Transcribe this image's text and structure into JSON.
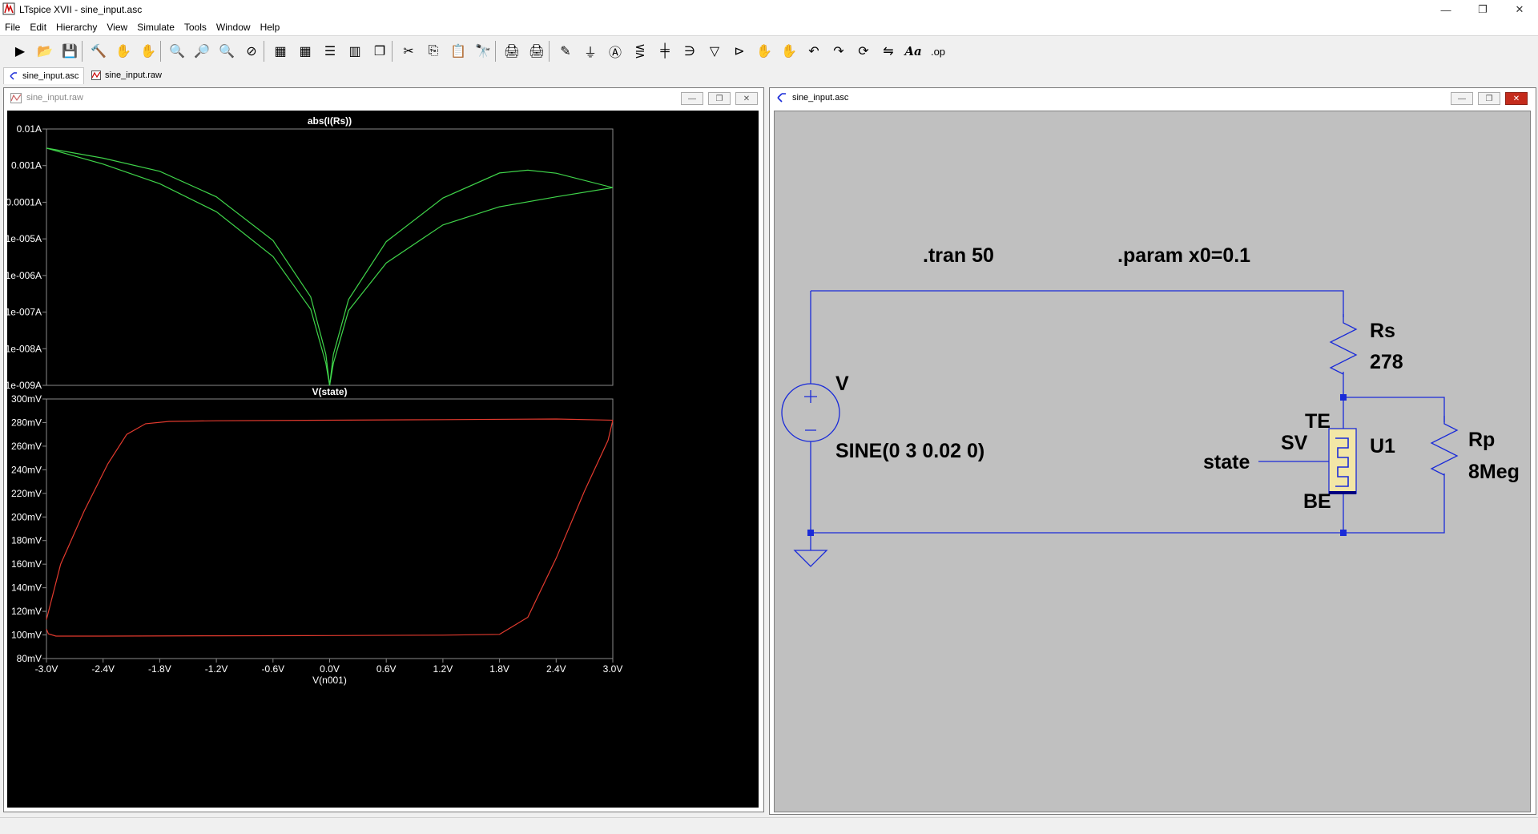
{
  "app": {
    "title": "LTspice XVII - sine_input.asc"
  },
  "window_controls": [
    "minimize-icon",
    "restore-icon",
    "close-icon"
  ],
  "menu": [
    "File",
    "Edit",
    "Hierarchy",
    "View",
    "Simulate",
    "Tools",
    "Window",
    "Help"
  ],
  "toolbar": {
    "icons": [
      "run-icon",
      "open-icon",
      "save-icon",
      "control-panel-icon",
      "halt-icon",
      "pan-icon",
      "zoom-in-icon",
      "zoom-area-icon",
      "zoom-out-icon",
      "zoom-fit-icon",
      "autorange-icon",
      "grid-icon",
      "tile-horizontal-icon",
      "tile-vertical-icon",
      "cascade-icon",
      "cut-icon",
      "copy-icon",
      "paste-icon",
      "find-icon",
      "print-icon",
      "print-setup-icon",
      "probe-icon",
      "ground-icon",
      "label-net-icon",
      "resistor-icon",
      "capacitor-icon",
      "inductor-icon",
      "diode-icon",
      "component-icon",
      "move-icon",
      "drag-icon",
      "undo-icon",
      "redo-icon",
      "rotate-icon",
      "mirror-icon",
      "text-icon",
      "spice-directive-icon"
    ],
    "op_label": ".op",
    "text_label": "Aa"
  },
  "tabs": [
    {
      "label": "sine_input.asc",
      "icon": "schematic-icon",
      "active": true
    },
    {
      "label": "sine_input.raw",
      "icon": "waveform-icon",
      "active": false
    }
  ],
  "waveform_window": {
    "title": "sine_input.raw"
  },
  "schematic_window": {
    "title": "sine_input.asc"
  },
  "colors": {
    "trace_green": "#3fd44a",
    "trace_red": "#e23a2e",
    "axis": "#8a8a8a",
    "wire": "#1a2bd8",
    "memristor": "#f2e6a6"
  },
  "chart_data": [
    {
      "type": "line",
      "title": "abs(I(Rs))",
      "xlabel": "",
      "yscale": "log",
      "xlim": [
        -3.0,
        3.0
      ],
      "ylim": [
        1e-09,
        0.01
      ],
      "y_ticks": [
        "0.01A",
        "0.001A",
        "0.0001A",
        "1e-005A",
        "1e-006A",
        "1e-007A",
        "1e-008A",
        "1e-009A"
      ],
      "series": [
        {
          "x": [
            -3.0,
            -2.4,
            -1.8,
            -1.2,
            -0.6,
            -0.2,
            -0.04,
            0.0,
            0.04,
            0.2,
            0.6,
            1.2,
            1.8,
            2.1,
            2.4,
            3.0
          ],
          "y": [
            0.003,
            0.0016,
            0.0007,
            0.00014,
            9e-06,
            2.6e-07,
            7e-09,
            1e-09,
            7e-09,
            2.2e-07,
            8.4e-06,
            0.00013,
            0.00063,
            0.00075,
            0.00062,
            0.00025
          ]
        },
        {
          "x": [
            -3.0,
            -2.4,
            -1.8,
            -1.2,
            -0.6,
            -0.2,
            -0.04,
            0.0,
            0.04,
            0.2,
            0.6,
            1.2,
            1.8,
            2.4,
            3.0
          ],
          "y": [
            0.003,
            0.0011,
            0.00032,
            5.5e-05,
            3.3e-06,
            1.2e-07,
            4e-09,
            1e-09,
            4e-09,
            1.1e-07,
            2.2e-06,
            2.4e-05,
            7.5e-05,
            0.00014,
            0.00025
          ]
        }
      ]
    },
    {
      "type": "line",
      "title": "V(state)",
      "xlabel": "V(n001)",
      "xlim": [
        -3.0,
        3.0
      ],
      "ylim": [
        80,
        300
      ],
      "x_ticks": [
        "-3.0V",
        "-2.4V",
        "-1.8V",
        "-1.2V",
        "-0.6V",
        "0.0V",
        "0.6V",
        "1.2V",
        "1.8V",
        "2.4V",
        "3.0V"
      ],
      "y_ticks": [
        "300mV",
        "280mV",
        "260mV",
        "240mV",
        "220mV",
        "200mV",
        "180mV",
        "160mV",
        "140mV",
        "120mV",
        "100mV",
        "80mV"
      ],
      "series": [
        {
          "x": [
            -3.0,
            -2.85,
            -2.6,
            -2.35,
            -2.15,
            -1.95,
            -1.7,
            -1.2,
            0.0,
            1.2,
            2.4,
            3.0
          ],
          "y": [
            113,
            160,
            205,
            245,
            270,
            279,
            281,
            281.5,
            282,
            282.5,
            283,
            282
          ]
        },
        {
          "x": [
            -3.0,
            -2.98,
            -2.9,
            -2.4,
            -1.2,
            0.0,
            1.2,
            1.8,
            2.1,
            2.4,
            2.7,
            2.95,
            3.0
          ],
          "y": [
            105,
            101,
            99,
            99,
            99.3,
            99.5,
            99.8,
            100.5,
            115,
            165,
            222,
            265,
            282
          ]
        }
      ]
    }
  ],
  "schematic": {
    "directives": [
      ".tran 50",
      ".param x0=0.1"
    ],
    "source": {
      "name": "V",
      "value": "SINE(0 3 0.02 0)"
    },
    "rs": {
      "name": "Rs",
      "value": "278"
    },
    "rp": {
      "name": "Rp",
      "value": "8Meg"
    },
    "memristor": {
      "name": "U1",
      "pin_top": "TE",
      "pin_bottom": "BE",
      "pin_side": "SV"
    },
    "net_label": "state"
  }
}
